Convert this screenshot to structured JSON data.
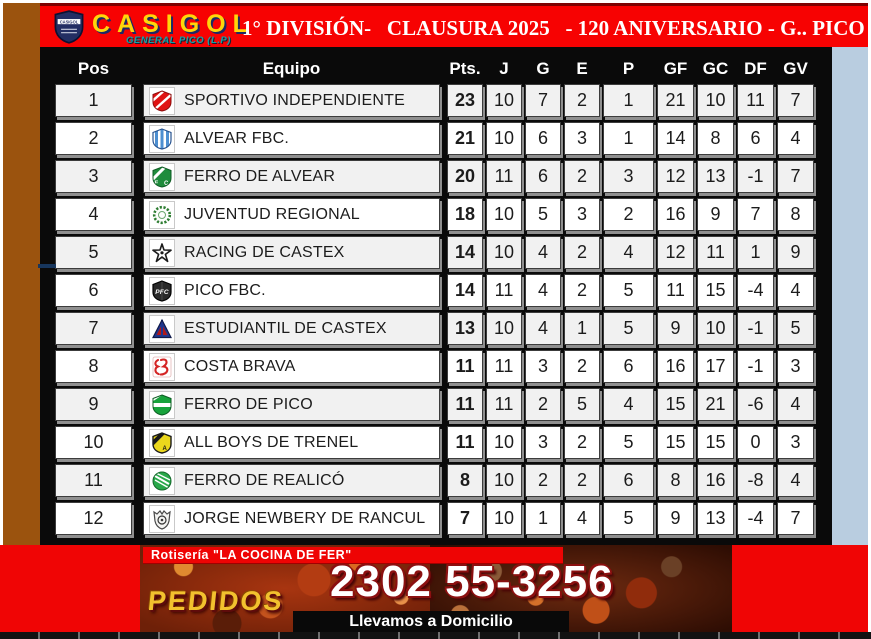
{
  "header": {
    "logo_name": "CASIGOL",
    "logo_subtitle": "GENERAL PICO (L.P)",
    "title": "1° DIVISIÓN-   CLAUSURA 2025   - 120 ANIVERSARIO - G.. PICO"
  },
  "colors": {
    "banner_red": "#F70202",
    "left_strip_brown": "#9B530E",
    "table_black": "#0A0A0A",
    "right_strip_blue": "#B9CDE0",
    "row_alt_gray": "#F1F1F1",
    "logo_gold": "#FFD60A"
  },
  "table": {
    "headers": [
      "Pos",
      "Equipo",
      "Pts.",
      "J",
      "G",
      "E",
      "P",
      "GF",
      "GC",
      "DF",
      "GV"
    ],
    "rows": [
      {
        "pos": 1,
        "team": "SPORTIVO INDEPENDIENTE",
        "icon": "sportivo-independiente-crest",
        "pts": 23,
        "j": 10,
        "g": 7,
        "e": 2,
        "p": 1,
        "gf": 21,
        "gc": 10,
        "df": 11,
        "gv": 7
      },
      {
        "pos": 2,
        "team": "ALVEAR FBC.",
        "icon": "alvear-fbc-crest",
        "pts": 21,
        "j": 10,
        "g": 6,
        "e": 3,
        "p": 1,
        "gf": 14,
        "gc": 8,
        "df": 6,
        "gv": 4
      },
      {
        "pos": 3,
        "team": "FERRO DE ALVEAR",
        "icon": "ferro-de-alvear-crest",
        "pts": 20,
        "j": 11,
        "g": 6,
        "e": 2,
        "p": 3,
        "gf": 12,
        "gc": 13,
        "df": -1,
        "gv": 7
      },
      {
        "pos": 4,
        "team": "JUVENTUD REGIONAL",
        "icon": "juventud-regional-crest",
        "pts": 18,
        "j": 10,
        "g": 5,
        "e": 3,
        "p": 2,
        "gf": 16,
        "gc": 9,
        "df": 7,
        "gv": 8
      },
      {
        "pos": 5,
        "team": "RACING DE CASTEX",
        "icon": "racing-de-castex-crest",
        "pts": 14,
        "j": 10,
        "g": 4,
        "e": 2,
        "p": 4,
        "gf": 12,
        "gc": 11,
        "df": 1,
        "gv": 9
      },
      {
        "pos": 6,
        "team": "PICO FBC.",
        "icon": "pico-fbc-crest",
        "pts": 14,
        "j": 11,
        "g": 4,
        "e": 2,
        "p": 5,
        "gf": 11,
        "gc": 15,
        "df": -4,
        "gv": 4
      },
      {
        "pos": 7,
        "team": "ESTUDIANTIL DE CASTEX",
        "icon": "estudiantil-de-castex-crest",
        "pts": 13,
        "j": 10,
        "g": 4,
        "e": 1,
        "p": 5,
        "gf": 9,
        "gc": 10,
        "df": -1,
        "gv": 5
      },
      {
        "pos": 8,
        "team": "COSTA BRAVA",
        "icon": "costa-brava-crest",
        "pts": 11,
        "j": 11,
        "g": 3,
        "e": 2,
        "p": 6,
        "gf": 16,
        "gc": 17,
        "df": -1,
        "gv": 3
      },
      {
        "pos": 9,
        "team": "FERRO DE PICO",
        "icon": "ferro-de-pico-crest",
        "pts": 11,
        "j": 11,
        "g": 2,
        "e": 5,
        "p": 4,
        "gf": 15,
        "gc": 21,
        "df": -6,
        "gv": 4
      },
      {
        "pos": 10,
        "team": "ALL BOYS DE TRENEL",
        "icon": "all-boys-crest",
        "pts": 11,
        "j": 10,
        "g": 3,
        "e": 2,
        "p": 5,
        "gf": 15,
        "gc": 15,
        "df": 0,
        "gv": 3
      },
      {
        "pos": 11,
        "team": "FERRO DE REALICÓ",
        "icon": "ferro-de-realico-crest",
        "pts": 8,
        "j": 10,
        "g": 2,
        "e": 2,
        "p": 6,
        "gf": 8,
        "gc": 16,
        "df": -8,
        "gv": 4
      },
      {
        "pos": 12,
        "team": "JORGE NEWBERY DE RANCUL",
        "icon": "jorge-newbery-crest",
        "pts": 7,
        "j": 10,
        "g": 1,
        "e": 4,
        "p": 5,
        "gf": 9,
        "gc": 13,
        "df": -4,
        "gv": 7
      }
    ]
  },
  "chart_data": {
    "type": "table",
    "title": "1° DIVISIÓN- CLAUSURA 2025 - 120 ANIVERSARIO - G.. PICO",
    "columns": [
      "Pos",
      "Equipo",
      "Pts.",
      "J",
      "G",
      "E",
      "P",
      "GF",
      "GC",
      "DF",
      "GV"
    ],
    "rows": [
      [
        1,
        "SPORTIVO INDEPENDIENTE",
        23,
        10,
        7,
        2,
        1,
        21,
        10,
        11,
        7
      ],
      [
        2,
        "ALVEAR FBC.",
        21,
        10,
        6,
        3,
        1,
        14,
        8,
        6,
        4
      ],
      [
        3,
        "FERRO DE ALVEAR",
        20,
        11,
        6,
        2,
        3,
        12,
        13,
        -1,
        7
      ],
      [
        4,
        "JUVENTUD REGIONAL",
        18,
        10,
        5,
        3,
        2,
        16,
        9,
        7,
        8
      ],
      [
        5,
        "RACING DE CASTEX",
        14,
        10,
        4,
        2,
        4,
        12,
        11,
        1,
        9
      ],
      [
        6,
        "PICO FBC.",
        14,
        11,
        4,
        2,
        5,
        11,
        15,
        -4,
        4
      ],
      [
        7,
        "ESTUDIANTIL DE CASTEX",
        13,
        10,
        4,
        1,
        5,
        9,
        10,
        -1,
        5
      ],
      [
        8,
        "COSTA BRAVA",
        11,
        11,
        3,
        2,
        6,
        16,
        17,
        -1,
        3
      ],
      [
        9,
        "FERRO DE PICO",
        11,
        11,
        2,
        5,
        4,
        15,
        21,
        -6,
        4
      ],
      [
        10,
        "ALL BOYS DE TRENEL",
        11,
        10,
        3,
        2,
        5,
        15,
        15,
        0,
        3
      ],
      [
        11,
        "FERRO DE REALICÓ",
        8,
        10,
        2,
        2,
        6,
        8,
        16,
        -8,
        4
      ],
      [
        12,
        "JORGE NEWBERY DE RANCUL",
        7,
        10,
        1,
        4,
        5,
        9,
        13,
        -4,
        7
      ]
    ]
  },
  "ad_banner": {
    "business": "Rotisería \"LA COCINA DE FER\"",
    "cta": "PEDIDOS",
    "phone": "2302 55-3256",
    "tagline": "Llevamos a Domicilio"
  }
}
